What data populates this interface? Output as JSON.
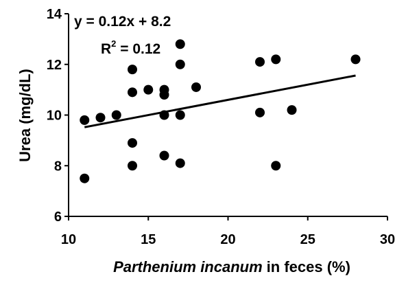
{
  "chart_data": {
    "type": "scatter",
    "xlabel_italic": "Parthenium incanum",
    "xlabel_rest": "in feces (%)",
    "ylabel": "Urea (mg/dL)",
    "xlim": [
      10,
      30
    ],
    "ylim": [
      6,
      14
    ],
    "xticks": [
      10,
      15,
      20,
      25,
      30
    ],
    "yticks": [
      6,
      8,
      10,
      12,
      14
    ],
    "grid": false,
    "legend": "none",
    "marker_color": "#000000",
    "trendline": {
      "slope": 0.12,
      "intercept": 8.2,
      "x_start": 11,
      "x_end": 28
    },
    "annotations": {
      "equation": "y = 0.12x + 8.2",
      "r2_prefix": "R",
      "r2_sup": "2",
      "r2_suffix": " = 0.12"
    },
    "points": [
      {
        "x": 11,
        "y": 9.8
      },
      {
        "x": 11,
        "y": 7.5
      },
      {
        "x": 12,
        "y": 9.9
      },
      {
        "x": 13,
        "y": 10.0
      },
      {
        "x": 14,
        "y": 11.8
      },
      {
        "x": 14,
        "y": 10.9
      },
      {
        "x": 14,
        "y": 8.9
      },
      {
        "x": 14,
        "y": 8.0
      },
      {
        "x": 15,
        "y": 11.0
      },
      {
        "x": 16,
        "y": 11.0
      },
      {
        "x": 16,
        "y": 10.8
      },
      {
        "x": 16,
        "y": 10.0
      },
      {
        "x": 16,
        "y": 8.4
      },
      {
        "x": 17,
        "y": 12.8
      },
      {
        "x": 17,
        "y": 12.0
      },
      {
        "x": 17,
        "y": 10.0
      },
      {
        "x": 17,
        "y": 8.1
      },
      {
        "x": 18,
        "y": 11.1
      },
      {
        "x": 22,
        "y": 12.1
      },
      {
        "x": 22,
        "y": 10.1
      },
      {
        "x": 23,
        "y": 12.2
      },
      {
        "x": 23,
        "y": 8.0
      },
      {
        "x": 24,
        "y": 10.2
      },
      {
        "x": 28,
        "y": 12.2
      }
    ]
  }
}
